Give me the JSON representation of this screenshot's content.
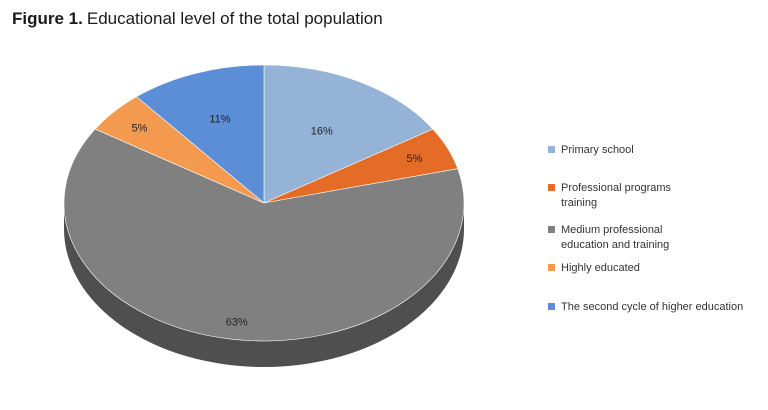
{
  "title": {
    "prefix": "Figure 1.",
    "text": "Educational level of the total population"
  },
  "chart_data": {
    "type": "pie",
    "title": "Educational level of the total population",
    "slices": [
      {
        "name": "Primary school",
        "value": 16,
        "label": "16%",
        "color": "#95B3D7"
      },
      {
        "name": "Professional programs training",
        "value": 5,
        "label": "5%",
        "color": "#E46C26"
      },
      {
        "name": "Medium professional education and training",
        "value": 63,
        "label": "63%",
        "color": "#808080"
      },
      {
        "name": "Highly educated",
        "value": 5,
        "label": "5%",
        "color": "#F39A4E"
      },
      {
        "name": "The second cycle of higher education",
        "value": 11,
        "label": "11%",
        "color": "#5B8ED7"
      }
    ],
    "legend_position": "right",
    "style": "3d"
  },
  "legend": {
    "items": [
      {
        "label": "Primary school",
        "color": "#95B3D7"
      },
      {
        "label": "Professional programs training",
        "color": "#E46C26"
      },
      {
        "label": "Medium professional education and training",
        "color": "#808080"
      },
      {
        "label": "Highly educated",
        "color": "#F39A4E"
      },
      {
        "label": "The second cycle of higher education",
        "color": "#5B8ED7"
      }
    ]
  }
}
